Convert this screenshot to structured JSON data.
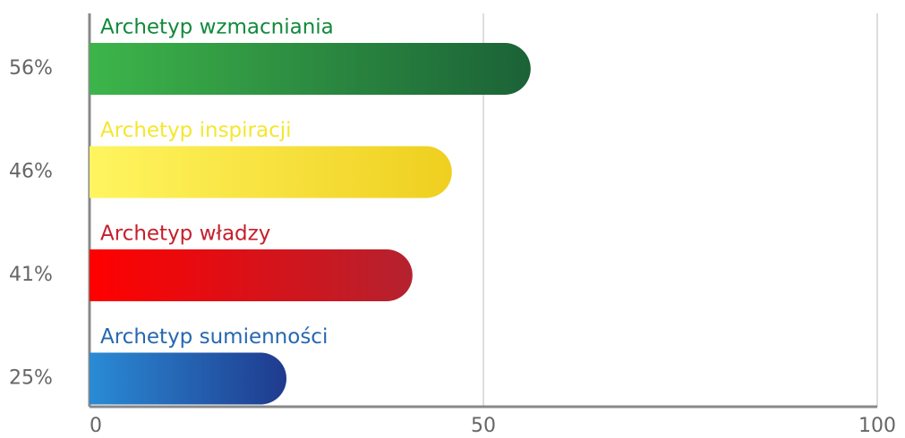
{
  "chart_data": {
    "type": "bar",
    "orientation": "horizontal",
    "categories": [
      "Archetyp wzmacniania",
      "Archetyp inspiracji",
      "Archetyp władzy",
      "Archetyp sumienności"
    ],
    "values": [
      56,
      46,
      41,
      25
    ],
    "value_labels": [
      "56%",
      "46%",
      "41%",
      "25%"
    ],
    "gradients": [
      [
        "#3db54a",
        "#1b6237"
      ],
      [
        "#fff560",
        "#efcf1f"
      ],
      [
        "#ff0000",
        "#b4222f"
      ],
      [
        "#2a8bd5",
        "#1f3a8e"
      ]
    ],
    "label_colors": [
      "#118a3b",
      "#f5e630",
      "#c4202c",
      "#2667b0"
    ],
    "xlim": [
      0,
      100
    ],
    "xticks": [
      0,
      50,
      100
    ],
    "grid": true
  }
}
